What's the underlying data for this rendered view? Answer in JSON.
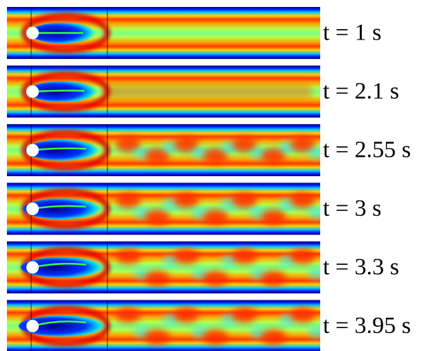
{
  "panels": [
    {
      "label": "t = 1 s"
    },
    {
      "label": "t = 2.1 s"
    },
    {
      "label": "t = 2.55 s"
    },
    {
      "label": "t = 3 s"
    },
    {
      "label": "t = 3.3 s"
    },
    {
      "label": "t = 3.95 s"
    }
  ]
}
